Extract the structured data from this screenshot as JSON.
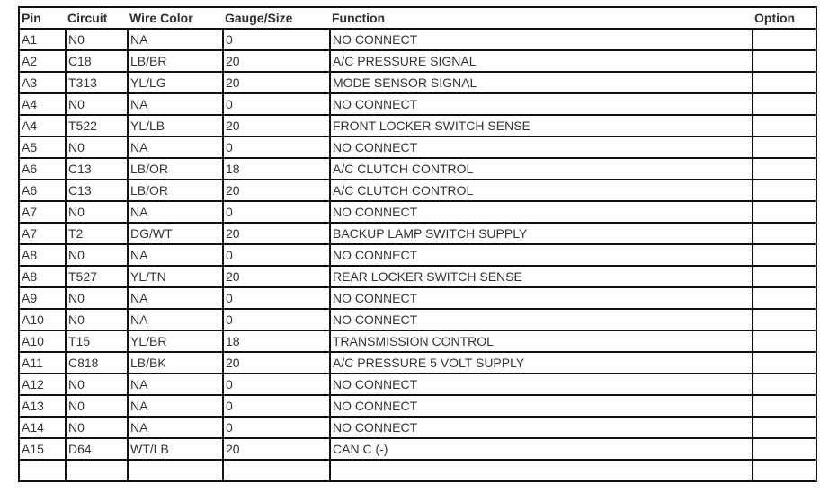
{
  "headers": [
    "Pin",
    "Circuit",
    "Wire Color",
    "Gauge/Size",
    "Function",
    "Option"
  ],
  "rows": [
    [
      "A1",
      "N0",
      "NA",
      "0",
      "NO CONNECT",
      ""
    ],
    [
      "A2",
      "C18",
      "LB/BR",
      "20",
      "A/C PRESSURE SIGNAL",
      ""
    ],
    [
      "A3",
      "T313",
      "YL/LG",
      "20",
      "MODE SENSOR SIGNAL",
      ""
    ],
    [
      "A4",
      "N0",
      "NA",
      "0",
      "NO CONNECT",
      ""
    ],
    [
      "A4",
      "T522",
      "YL/LB",
      "20",
      "FRONT LOCKER SWITCH SENSE",
      ""
    ],
    [
      "A5",
      "N0",
      "NA",
      "0",
      "NO CONNECT",
      ""
    ],
    [
      "A6",
      "C13",
      "LB/OR",
      "18",
      "A/C CLUTCH CONTROL",
      ""
    ],
    [
      "A6",
      "C13",
      "LB/OR",
      "20",
      "A/C CLUTCH CONTROL",
      ""
    ],
    [
      "A7",
      "N0",
      "NA",
      "0",
      "NO CONNECT",
      ""
    ],
    [
      "A7",
      "T2",
      "DG/WT",
      "20",
      "BACKUP LAMP SWITCH SUPPLY",
      ""
    ],
    [
      "A8",
      "N0",
      "NA",
      "0",
      "NO CONNECT",
      ""
    ],
    [
      "A8",
      "T527",
      "YL/TN",
      "20",
      "REAR LOCKER SWITCH SENSE",
      ""
    ],
    [
      "A9",
      "N0",
      "NA",
      "0",
      "NO CONNECT",
      ""
    ],
    [
      "A10",
      "N0",
      "NA",
      "0",
      "NO CONNECT",
      ""
    ],
    [
      "A10",
      "T15",
      "YL/BR",
      "18",
      "TRANSMISSION CONTROL",
      ""
    ],
    [
      "A11",
      "C818",
      "LB/BK",
      "20",
      "A/C PRESSURE 5 VOLT SUPPLY",
      ""
    ],
    [
      "A12",
      "N0",
      "NA",
      "0",
      "NO CONNECT",
      ""
    ],
    [
      "A13",
      "N0",
      "NA",
      "0",
      "NO CONNECT",
      ""
    ],
    [
      "A14",
      "N0",
      "NA",
      "0",
      "NO CONNECT",
      ""
    ],
    [
      "A15",
      "D64",
      "WT/LB",
      "20",
      "CAN C (-)",
      ""
    ],
    [
      "",
      "",
      "",
      "",
      "",
      ""
    ]
  ]
}
